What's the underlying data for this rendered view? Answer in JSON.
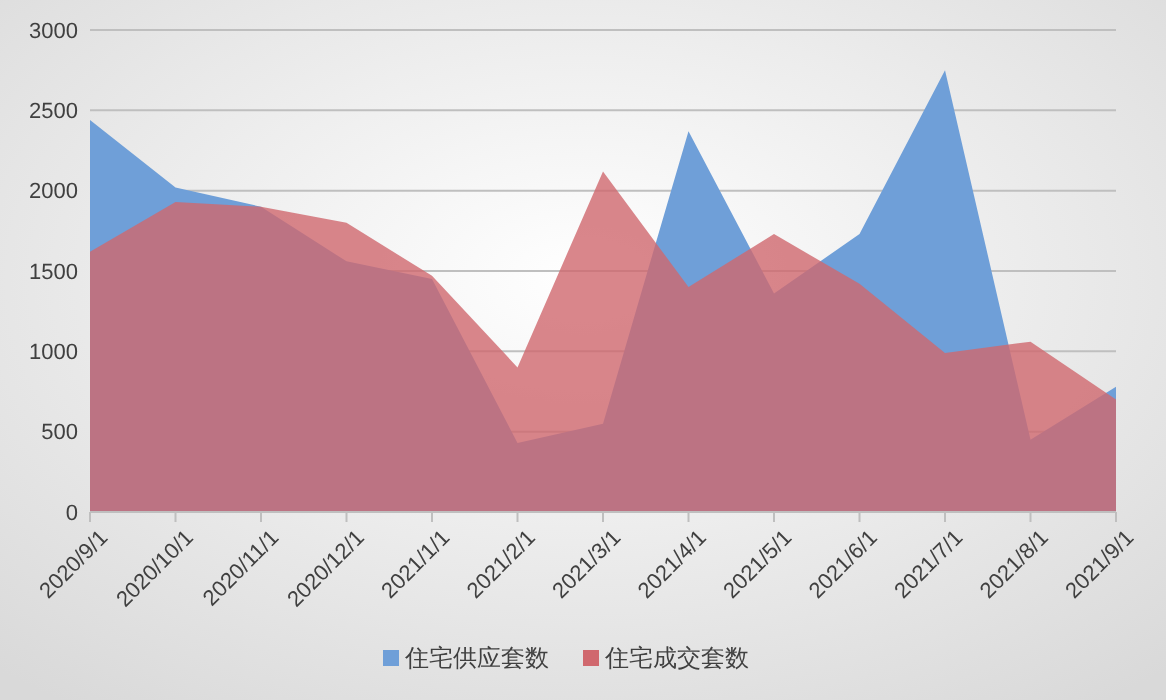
{
  "chart_data": {
    "type": "area",
    "categories": [
      "2020/9/1",
      "2020/10/1",
      "2020/11/1",
      "2020/12/1",
      "2021/1/1",
      "2021/2/1",
      "2021/3/1",
      "2021/4/1",
      "2021/5/1",
      "2021/6/1",
      "2021/7/1",
      "2021/8/1",
      "2021/9/1"
    ],
    "series": [
      {
        "name": "住宅供应套数",
        "color": "#6f9fd8",
        "values": [
          2440,
          2020,
          1900,
          1560,
          1450,
          430,
          550,
          2370,
          1360,
          1730,
          2750,
          450,
          780
        ]
      },
      {
        "name": "住宅成交套数",
        "color": "#d0686e",
        "values": [
          1620,
          1930,
          1900,
          1800,
          1470,
          900,
          2120,
          1400,
          1730,
          1420,
          990,
          1060,
          700
        ]
      }
    ],
    "ylim": [
      0,
      3000
    ],
    "yticks": [
      0,
      500,
      1000,
      1500,
      2000,
      2500,
      3000
    ],
    "grid": "y",
    "legend": "bottom"
  }
}
